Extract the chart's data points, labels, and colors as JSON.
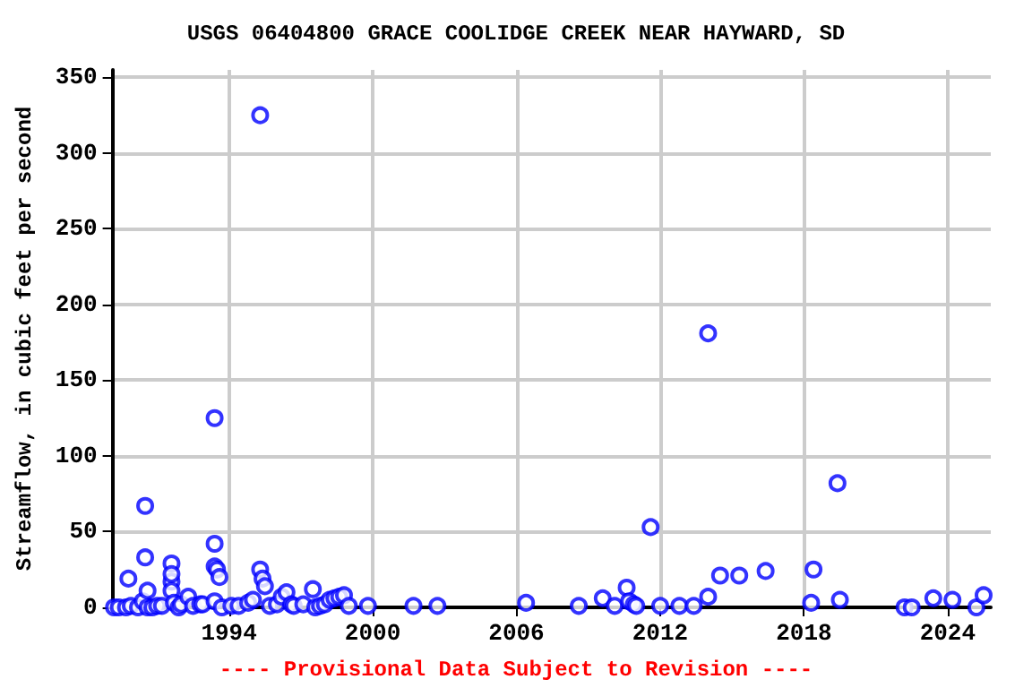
{
  "chart_data": {
    "type": "scatter",
    "title": "USGS 06404800 GRACE COOLIDGE CREEK NEAR HAYWARD, SD",
    "ylabel": "Streamflow, in cubic feet per second",
    "annotations": [
      "---- Provisional Data Subject to Revision ----"
    ],
    "x": [
      1989.2,
      1989.4,
      1989.7,
      1989.8,
      1989.9,
      1990.2,
      1990.4,
      1990.5,
      1990.5,
      1990.6,
      1990.6,
      1990.8,
      1991.0,
      1991.2,
      1991.6,
      1991.6,
      1991.6,
      1991.6,
      1991.7,
      1991.9,
      1992.0,
      1992.3,
      1992.5,
      1992.8,
      1992.9,
      1993.4,
      1993.4,
      1993.4,
      1993.5,
      1993.6,
      1993.4,
      1993.7,
      1994.1,
      1994.4,
      1994.8,
      1995.0,
      1995.3,
      1995.3,
      1995.4,
      1995.5,
      1995.7,
      1996.0,
      1996.2,
      1996.4,
      1996.6,
      1996.7,
      1997.1,
      1997.5,
      1997.6,
      1997.8,
      1998.0,
      1998.2,
      1998.4,
      1998.6,
      1998.8,
      1999.0,
      1999.8,
      2001.7,
      2002.7,
      2006.4,
      2008.6,
      2009.6,
      2010.1,
      2010.6,
      2010.7,
      2010.9,
      2011.0,
      2011.6,
      2012.0,
      2012.8,
      2013.4,
      2014.0,
      2014.0,
      2014.5,
      2015.3,
      2016.4,
      2018.3,
      2018.4,
      2019.4,
      2019.5,
      2022.2,
      2022.5,
      2023.4,
      2024.2,
      2025.2,
      2025.5
    ],
    "values": [
      0,
      0,
      0,
      19,
      1,
      0,
      4,
      67,
      33,
      11,
      0,
      0,
      1,
      1,
      17,
      29,
      22,
      11,
      3,
      0,
      2,
      7,
      1,
      2,
      2,
      125,
      42,
      27,
      25,
      20,
      4,
      0,
      1,
      1,
      3,
      5,
      325,
      25,
      19,
      14,
      1,
      2,
      7,
      10,
      2,
      1,
      2,
      12,
      0,
      1,
      2,
      5,
      6,
      7,
      8,
      1,
      1,
      1,
      1,
      3,
      1,
      6,
      1,
      13,
      4,
      2,
      1,
      53,
      1,
      1,
      1,
      7,
      181,
      21,
      21,
      24,
      3,
      25,
      82,
      5,
      0,
      0,
      6,
      5,
      0,
      8
    ],
    "color": "#0000ff",
    "marker": "circle",
    "xlim": [
      1989.1,
      2025.8
    ],
    "xticks": [
      1994,
      2000,
      2006,
      2012,
      2018,
      2024
    ],
    "ylim": [
      0,
      355
    ],
    "yticks": [
      0,
      50,
      100,
      150,
      200,
      250,
      300,
      350
    ],
    "grid": true
  }
}
